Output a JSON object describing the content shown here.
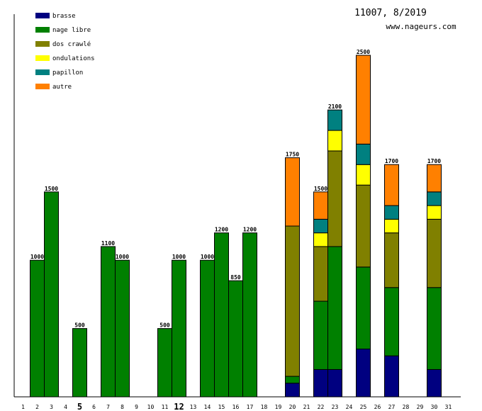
{
  "chart_data": {
    "type": "bar",
    "stacked": true,
    "title": "11007, 8/2019",
    "subtitle": "www.nageurs.com",
    "days": [
      1,
      2,
      3,
      4,
      5,
      6,
      7,
      8,
      9,
      10,
      11,
      12,
      13,
      14,
      15,
      16,
      17,
      18,
      19,
      20,
      21,
      22,
      23,
      24,
      25,
      26,
      27,
      28,
      29,
      30,
      31
    ],
    "tick_labels": [
      "1",
      "2",
      "3",
      "4",
      "5",
      "6",
      "7",
      "8",
      "9",
      "10",
      "11",
      "12",
      "13",
      "14",
      "15",
      "16",
      "17",
      "18",
      "19",
      "20",
      "21",
      "22",
      "23",
      "24",
      "25",
      "26",
      "27",
      "28",
      "29",
      "30",
      "31"
    ],
    "bold_ticks": [
      "5",
      "12"
    ],
    "ylim": [
      0,
      2500
    ],
    "series": [
      {
        "name": "brasse",
        "color": "#000080",
        "values": [
          0,
          0,
          0,
          0,
          0,
          0,
          0,
          0,
          0,
          0,
          0,
          0,
          0,
          0,
          0,
          0,
          0,
          0,
          0,
          100,
          0,
          200,
          200,
          0,
          350,
          0,
          300,
          0,
          0,
          200,
          0
        ]
      },
      {
        "name": "nage libre",
        "color": "#008000",
        "values": [
          0,
          1000,
          1500,
          0,
          500,
          0,
          1100,
          1000,
          0,
          0,
          500,
          1000,
          0,
          1000,
          1200,
          850,
          1200,
          0,
          0,
          50,
          0,
          500,
          900,
          0,
          600,
          0,
          500,
          0,
          0,
          600,
          0
        ]
      },
      {
        "name": "dos crawlé",
        "color": "#808000",
        "values": [
          0,
          0,
          0,
          0,
          0,
          0,
          0,
          0,
          0,
          0,
          0,
          0,
          0,
          0,
          0,
          0,
          0,
          0,
          0,
          1100,
          0,
          400,
          700,
          0,
          600,
          0,
          400,
          0,
          0,
          500,
          0
        ]
      },
      {
        "name": "ondulations",
        "color": "#ffff00",
        "values": [
          0,
          0,
          0,
          0,
          0,
          0,
          0,
          0,
          0,
          0,
          0,
          0,
          0,
          0,
          0,
          0,
          0,
          0,
          0,
          0,
          0,
          100,
          150,
          0,
          150,
          0,
          100,
          0,
          0,
          100,
          0
        ]
      },
      {
        "name": "papillon",
        "color": "#008080",
        "values": [
          0,
          0,
          0,
          0,
          0,
          0,
          0,
          0,
          0,
          0,
          0,
          0,
          0,
          0,
          0,
          0,
          0,
          0,
          0,
          0,
          0,
          100,
          150,
          0,
          150,
          0,
          100,
          0,
          0,
          100,
          0
        ]
      },
      {
        "name": "autre",
        "color": "#ff8000",
        "values": [
          0,
          0,
          0,
          0,
          0,
          0,
          0,
          0,
          0,
          0,
          0,
          0,
          0,
          0,
          0,
          0,
          0,
          0,
          0,
          500,
          0,
          200,
          0,
          0,
          650,
          0,
          300,
          0,
          0,
          200,
          0
        ]
      }
    ],
    "totals": [
      "",
      "1000",
      "1500",
      "",
      "500",
      "",
      "1100",
      "1000",
      "",
      "",
      "500",
      "1000",
      "",
      "1000",
      "1200",
      "850",
      "1200",
      "",
      "",
      "1750",
      "",
      "1500",
      "2100",
      "",
      "2500",
      "",
      "1700",
      "",
      "",
      "1700",
      ""
    ],
    "legend_position": "top-left"
  }
}
